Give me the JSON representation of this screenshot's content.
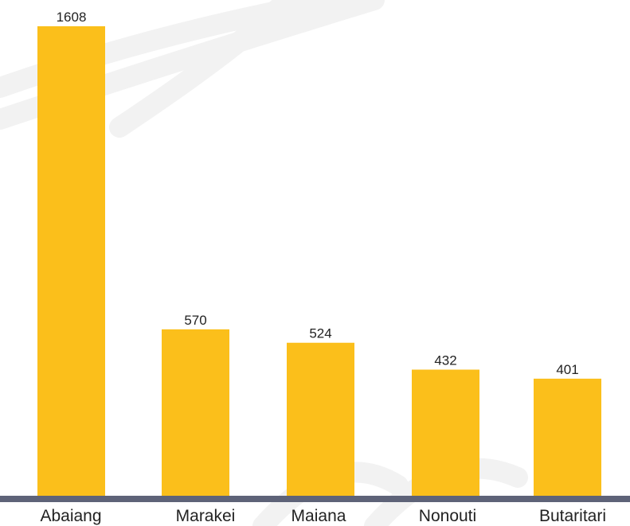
{
  "colors": {
    "bar": "#FBBF1B",
    "axis": "#5E6378",
    "text": "#222222",
    "watermark": "#F2F2F2"
  },
  "chart_data": {
    "type": "bar",
    "categories": [
      "Abaiang",
      "Marakei",
      "Maiana",
      "Nonouti",
      "Butaritari"
    ],
    "values": [
      1608,
      570,
      524,
      432,
      401
    ],
    "value_labels": [
      "1608",
      "570",
      "524",
      "432",
      "401"
    ],
    "title": "",
    "xlabel": "",
    "ylabel": "",
    "ylim": [
      0,
      1608
    ],
    "grid": false,
    "legend": "none"
  }
}
